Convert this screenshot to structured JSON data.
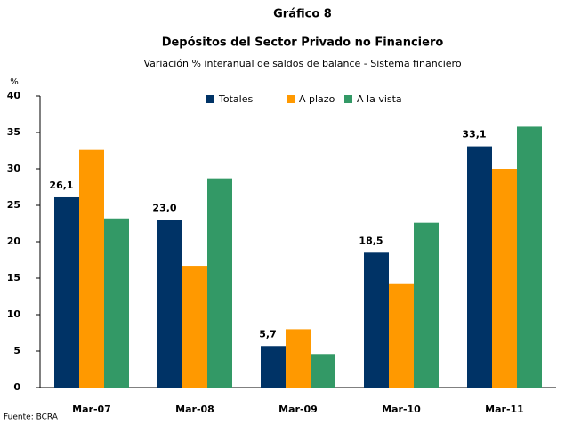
{
  "chart_data": {
    "type": "bar",
    "title": "Gráfico 8",
    "subtitle": "Depósitos del Sector Privado no Financiero",
    "description": "Variación % interanual de saldos de balance - Sistema financiero",
    "y_label": "%",
    "source": "Fuente: BCRA",
    "categories": [
      "Mar-07",
      "Mar-08",
      "Mar-09",
      "Mar-10",
      "Mar-11"
    ],
    "series": [
      {
        "name": "Totales",
        "color": "#003366",
        "values": [
          26.1,
          23.0,
          5.7,
          18.5,
          33.1
        ],
        "value_labels": [
          "26,1",
          "23,0",
          "5,7",
          "18,5",
          "33,1"
        ]
      },
      {
        "name": "A plazo",
        "color": "#ff9900",
        "values": [
          32.6,
          16.7,
          8.0,
          14.3,
          30.0
        ]
      },
      {
        "name": "A la vista",
        "color": "#339966",
        "values": [
          23.2,
          28.7,
          4.6,
          22.6,
          35.8
        ]
      }
    ],
    "ylim": [
      0,
      40
    ],
    "yticks": [
      0,
      5,
      10,
      15,
      20,
      25,
      30,
      35,
      40
    ],
    "grid": false,
    "legend": "top"
  }
}
